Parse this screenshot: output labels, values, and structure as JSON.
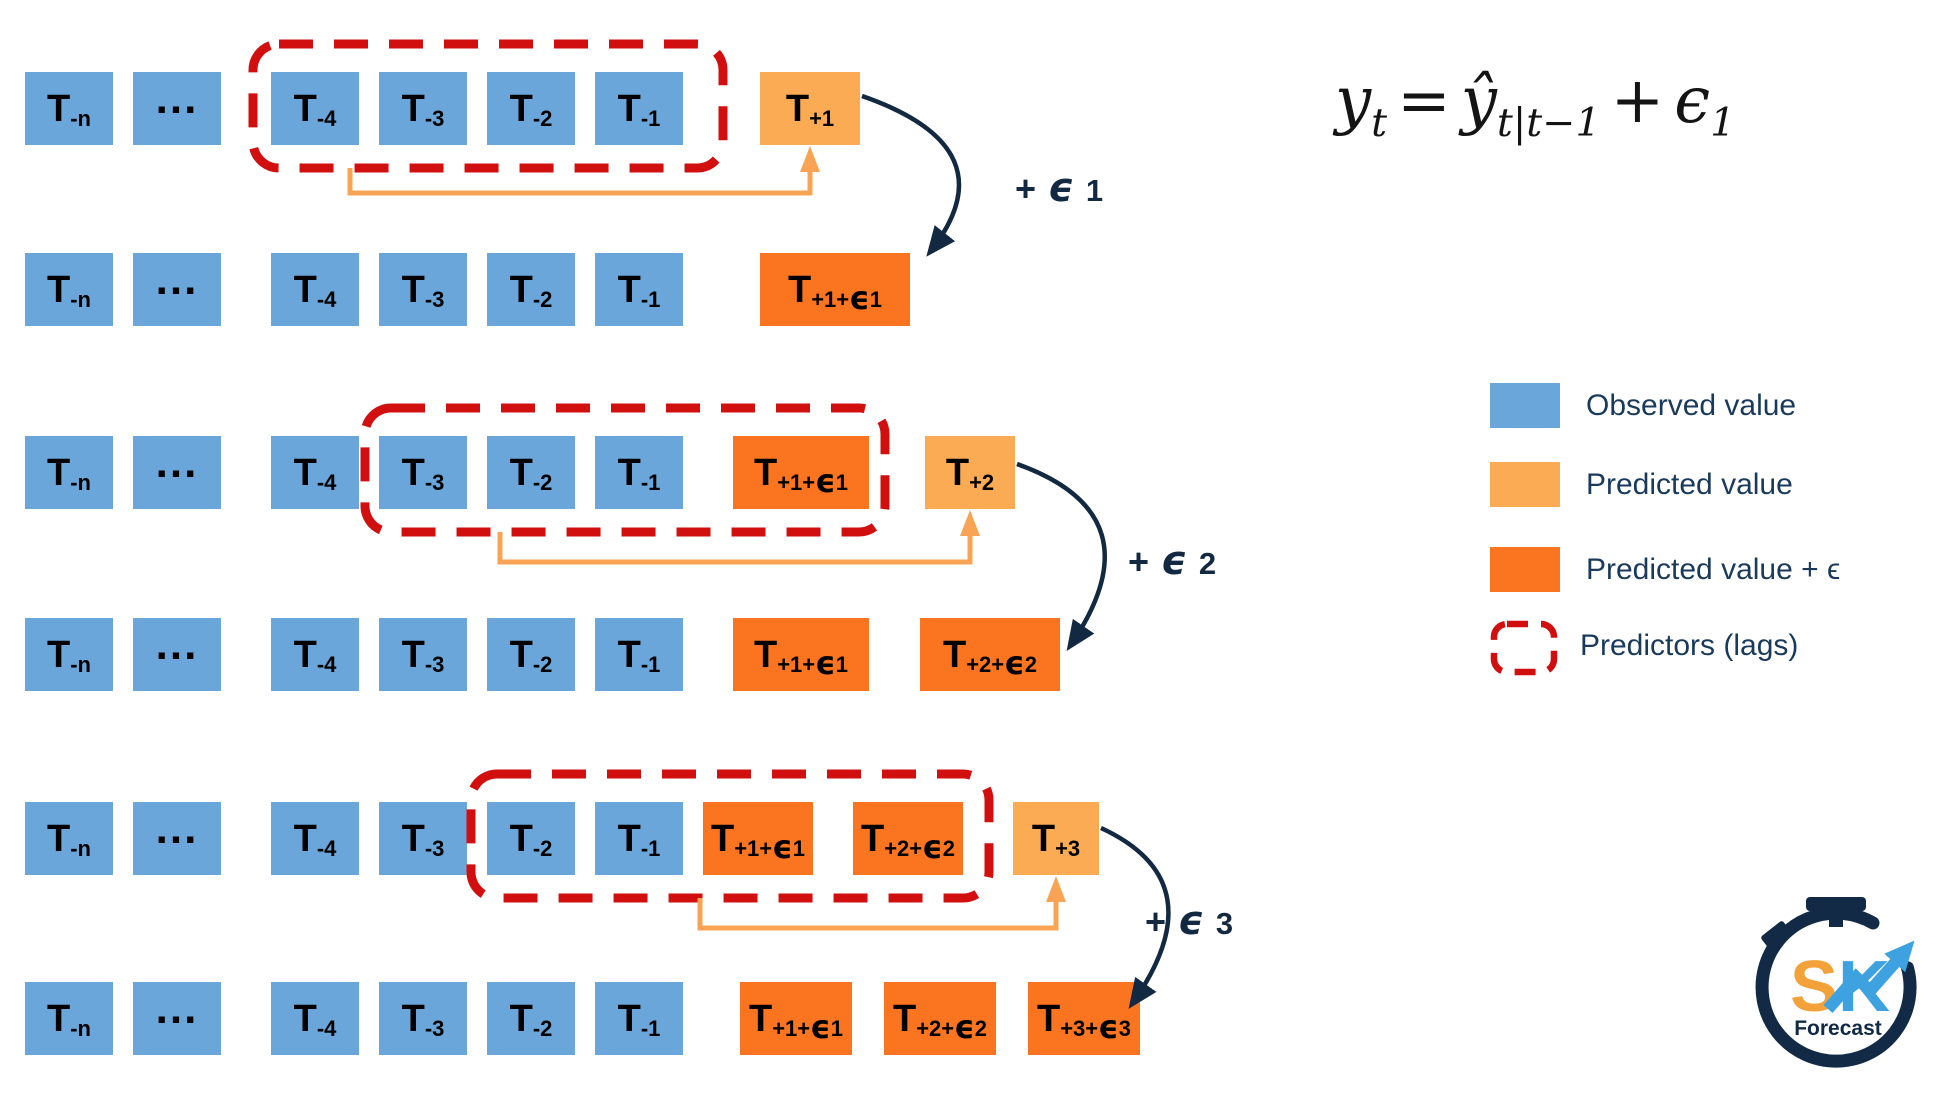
{
  "colors": {
    "observed_blue": "#6aa6d9",
    "predicted_orange": "#fcab55",
    "predicted_eps_orange": "#fb7420",
    "lag_red": "#d10f0f",
    "arrow_navy": "#132942",
    "connector_orange": "#f9a454",
    "logo_s_orange": "#f2a238",
    "logo_k_blue": "#3ea2e0"
  },
  "formula": {
    "lhs_base": "y",
    "lhs_sub": "t",
    "equals": "=",
    "pred_base": "ŷ",
    "pred_sub": "t|t−1",
    "plus": "+",
    "eps_base": "ϵ",
    "eps_sub": "1"
  },
  "legend": [
    {
      "label": "Observed value",
      "swatch": "observed"
    },
    {
      "label": "Predicted value",
      "swatch": "predicted"
    },
    {
      "label": "Predicted value + ϵ",
      "swatch": "predicted-eps"
    },
    {
      "label": "Predictors (lags)",
      "swatch": "lags"
    }
  ],
  "logo": {
    "s": "S",
    "k": "K",
    "caption": "Forecast"
  },
  "groups": [
    {
      "id": "step-1",
      "eps": {
        "plus": "+",
        "symbol": "ϵ",
        "index": "1"
      },
      "top_row": [
        {
          "main": "T",
          "sub": "-n",
          "type": "observed"
        },
        {
          "main": "...",
          "sub": "",
          "type": "observed"
        },
        {
          "main": "T",
          "sub": "-4",
          "type": "observed"
        },
        {
          "main": "T",
          "sub": "-3",
          "type": "observed"
        },
        {
          "main": "T",
          "sub": "-2",
          "type": "observed"
        },
        {
          "main": "T",
          "sub": "-1",
          "type": "observed"
        },
        {
          "main": "T",
          "sub": "+1",
          "type": "predicted"
        }
      ],
      "bottom_row": [
        {
          "main": "T",
          "sub": "-n",
          "type": "observed"
        },
        {
          "main": "...",
          "sub": "",
          "type": "observed"
        },
        {
          "main": "T",
          "sub": "-4",
          "type": "observed"
        },
        {
          "main": "T",
          "sub": "-3",
          "type": "observed"
        },
        {
          "main": "T",
          "sub": "-2",
          "type": "observed"
        },
        {
          "main": "T",
          "sub": "-1",
          "type": "observed"
        },
        {
          "main": "T",
          "sub": "+1+ϵ1",
          "type": "predicted-eps"
        }
      ]
    },
    {
      "id": "step-2",
      "eps": {
        "plus": "+",
        "symbol": "ϵ",
        "index": "2"
      },
      "top_row": [
        {
          "main": "T",
          "sub": "-n",
          "type": "observed"
        },
        {
          "main": "...",
          "sub": "",
          "type": "observed"
        },
        {
          "main": "T",
          "sub": "-4",
          "type": "observed"
        },
        {
          "main": "T",
          "sub": "-3",
          "type": "observed"
        },
        {
          "main": "T",
          "sub": "-2",
          "type": "observed"
        },
        {
          "main": "T",
          "sub": "-1",
          "type": "observed"
        },
        {
          "main": "T",
          "sub": "+1+ϵ1",
          "type": "predicted-eps"
        },
        {
          "main": "T",
          "sub": "+2",
          "type": "predicted"
        }
      ],
      "bottom_row": [
        {
          "main": "T",
          "sub": "-n",
          "type": "observed"
        },
        {
          "main": "...",
          "sub": "",
          "type": "observed"
        },
        {
          "main": "T",
          "sub": "-4",
          "type": "observed"
        },
        {
          "main": "T",
          "sub": "-3",
          "type": "observed"
        },
        {
          "main": "T",
          "sub": "-2",
          "type": "observed"
        },
        {
          "main": "T",
          "sub": "-1",
          "type": "observed"
        },
        {
          "main": "T",
          "sub": "+1+ϵ1",
          "type": "predicted-eps"
        },
        {
          "main": "T",
          "sub": "+2+ϵ2",
          "type": "predicted-eps"
        }
      ]
    },
    {
      "id": "step-3",
      "eps": {
        "plus": "+",
        "symbol": "ϵ",
        "index": "3"
      },
      "top_row": [
        {
          "main": "T",
          "sub": "-n",
          "type": "observed"
        },
        {
          "main": "...",
          "sub": "",
          "type": "observed"
        },
        {
          "main": "T",
          "sub": "-4",
          "type": "observed"
        },
        {
          "main": "T",
          "sub": "-3",
          "type": "observed"
        },
        {
          "main": "T",
          "sub": "-2",
          "type": "observed"
        },
        {
          "main": "T",
          "sub": "-1",
          "type": "observed"
        },
        {
          "main": "T",
          "sub": "+1+ϵ1",
          "type": "predicted-eps"
        },
        {
          "main": "T",
          "sub": "+2+ϵ2",
          "type": "predicted-eps"
        },
        {
          "main": "T",
          "sub": "+3",
          "type": "predicted"
        }
      ],
      "bottom_row": [
        {
          "main": "T",
          "sub": "-n",
          "type": "observed"
        },
        {
          "main": "...",
          "sub": "",
          "type": "observed"
        },
        {
          "main": "T",
          "sub": "-4",
          "type": "observed"
        },
        {
          "main": "T",
          "sub": "-3",
          "type": "observed"
        },
        {
          "main": "T",
          "sub": "-2",
          "type": "observed"
        },
        {
          "main": "T",
          "sub": "-1",
          "type": "observed"
        },
        {
          "main": "T",
          "sub": "+1+ϵ1",
          "type": "predicted-eps"
        },
        {
          "main": "T",
          "sub": "+2+ϵ2",
          "type": "predicted-eps"
        },
        {
          "main": "T",
          "sub": "+3+ϵ3",
          "type": "predicted-eps"
        }
      ]
    }
  ]
}
